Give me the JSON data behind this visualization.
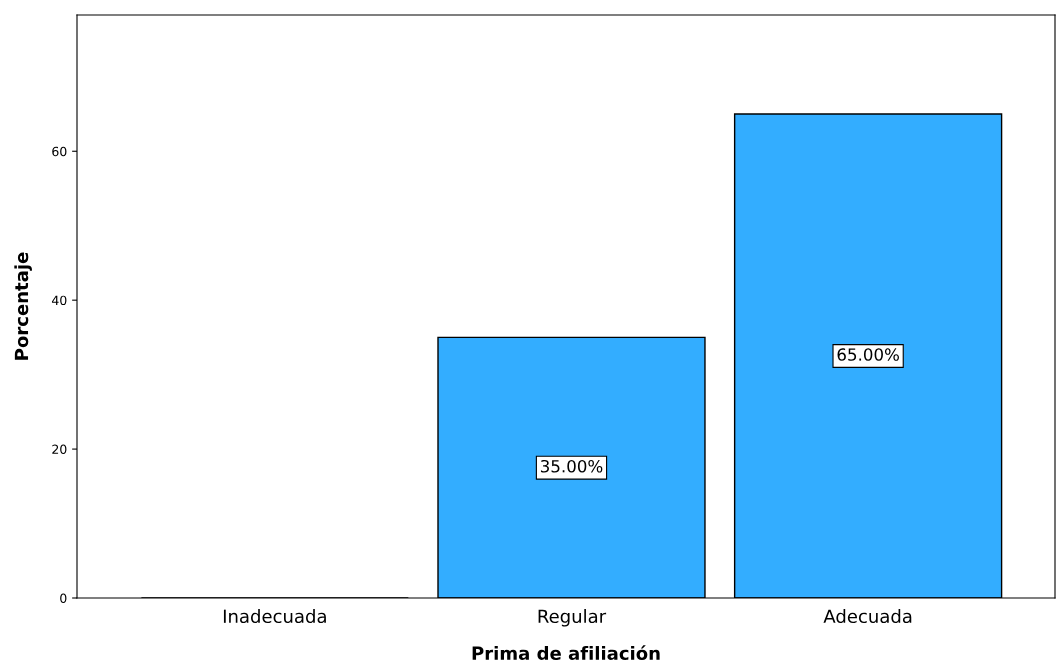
{
  "chart_data": {
    "type": "bar",
    "xlabel": "Prima de afiliación",
    "ylabel": "Porcentaje",
    "categories": [
      "Inadecuada",
      "Regular",
      "Adecuada"
    ],
    "values": [
      0,
      35,
      65
    ],
    "value_labels": [
      null,
      "35.00%",
      "65.00%"
    ],
    "color": "#33adff",
    "ylim": [
      0,
      78.3
    ],
    "yticks": [
      0,
      20,
      40,
      60
    ],
    "grid": false,
    "legend": false
  }
}
